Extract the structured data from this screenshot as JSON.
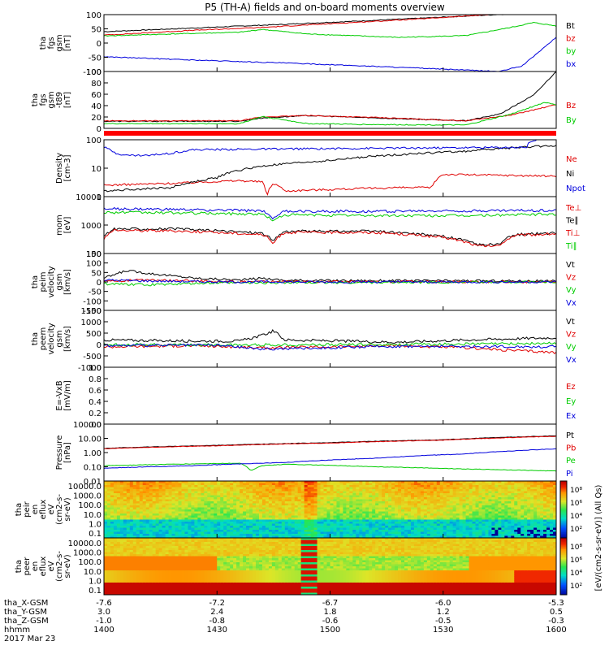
{
  "title": "P5 (TH-A) fields and on-board moments overview",
  "colors": {
    "black": "#000000",
    "red": "#e00000",
    "green": "#00cc00",
    "blue": "#0000dd"
  },
  "chart_data": [
    {
      "type": "line",
      "ylabel_lines": [
        "tha",
        "fgs",
        "gsm",
        "[nT]"
      ],
      "ylim": [
        -100,
        100
      ],
      "yticks": [
        "100",
        "50",
        "0",
        "-50",
        "-100"
      ],
      "legend": [
        {
          "text": "Bt",
          "color": "black"
        },
        {
          "text": "bz",
          "color": "red"
        },
        {
          "text": "by",
          "color": "green"
        },
        {
          "text": "bx",
          "color": "blue"
        }
      ],
      "series": [
        {
          "name": "Bt",
          "color": "black",
          "x": [
            1400,
            1440,
            1480,
            1520,
            1560,
            1600
          ],
          "y": [
            40,
            53,
            66,
            80,
            95,
            110
          ]
        },
        {
          "name": "bz",
          "color": "red",
          "x": [
            1400,
            1440,
            1470,
            1500,
            1540,
            1570,
            1580
          ],
          "y": [
            28,
            45,
            55,
            68,
            85,
            100,
            105
          ]
        },
        {
          "name": "by",
          "color": "green",
          "x": [
            1400,
            1430,
            1460,
            1470,
            1490,
            1530,
            1560,
            1580,
            1590,
            1600
          ],
          "y": [
            25,
            32,
            38,
            48,
            32,
            20,
            26,
            55,
            72,
            60
          ]
        },
        {
          "name": "bx",
          "color": "blue",
          "x": [
            1400,
            1440,
            1480,
            1520,
            1560,
            1575,
            1585,
            1600
          ],
          "y": [
            -48,
            -60,
            -70,
            -82,
            -95,
            -100,
            -80,
            20
          ]
        }
      ]
    },
    {
      "type": "line",
      "ylabel_lines": [
        "tha",
        "fgs",
        "gsm",
        "-t89",
        "[nT]"
      ],
      "ylim": [
        -10,
        110
      ],
      "yticks": [
        "100",
        "80",
        "60",
        "40",
        "20",
        "0"
      ],
      "legend": [
        {
          "text": "Bz",
          "color": "red"
        },
        {
          "text": "By",
          "color": "green"
        }
      ],
      "series": [
        {
          "name": "",
          "color": "black",
          "x": [
            1400,
            1460,
            1470,
            1490,
            1520,
            1560,
            1575,
            1590,
            1600
          ],
          "y": [
            5,
            5,
            12,
            17,
            12,
            6,
            20,
            60,
            110
          ]
        },
        {
          "name": "Bz",
          "color": "red",
          "x": [
            1400,
            1460,
            1470,
            1490,
            1520,
            1560,
            1580,
            1600
          ],
          "y": [
            6,
            6,
            14,
            17,
            13,
            6,
            18,
            40
          ]
        },
        {
          "name": "By",
          "color": "green",
          "x": [
            1400,
            1460,
            1470,
            1490,
            1520,
            1560,
            1580,
            1595,
            1600
          ],
          "y": [
            0,
            0,
            15,
            0,
            -2,
            -3,
            20,
            45,
            40
          ]
        }
      ]
    },
    {
      "type": "line",
      "ylabel_lines": [
        "Density",
        "[cm-3]"
      ],
      "yscale": "log",
      "ylim": [
        0.1,
        100
      ],
      "yticks": [
        "100",
        "10",
        "1"
      ],
      "legend": [
        {
          "text": "Ne",
          "color": "red"
        },
        {
          "text": "Ni",
          "color": "black"
        },
        {
          "text": "Npot",
          "color": "blue"
        }
      ],
      "series": [
        {
          "name": "Ne",
          "color": "red",
          "x": [
            1400,
            1430,
            1460,
            1470,
            1472,
            1475,
            1480,
            1530,
            1545,
            1550,
            1600
          ],
          "y": [
            0.4,
            0.5,
            0.7,
            0.6,
            0.1,
            0.5,
            0.2,
            0.3,
            0.3,
            1.5,
            1.2
          ]
        },
        {
          "name": "Ni",
          "color": "black",
          "x": [
            1400,
            1430,
            1440,
            1450,
            1470,
            1500,
            1560,
            1600
          ],
          "y": [
            0.2,
            0.3,
            0.6,
            1,
            4,
            8,
            25,
            50
          ]
        },
        {
          "name": "Npot",
          "color": "blue",
          "x": [
            1400,
            1405,
            1410,
            1420,
            1430,
            1440,
            1587,
            1588,
            1591,
            1592
          ],
          "y": [
            40,
            20,
            15,
            15,
            20,
            30,
            40,
            80,
            80,
            120
          ]
        }
      ]
    },
    {
      "type": "line",
      "ylabel_lines": [
        "mom",
        "[eV]"
      ],
      "yscale": "log",
      "ylim": [
        10,
        10000
      ],
      "yticks": [
        "10000",
        "1000",
        "100"
      ],
      "legend": [
        {
          "text": "Te⊥",
          "color": "red"
        },
        {
          "text": "Te∥",
          "color": "black"
        },
        {
          "text": "Ti⊥",
          "color": "red"
        },
        {
          "text": "Ti∥",
          "color": "green"
        }
      ],
      "series": [
        {
          "name": "Ti∥",
          "color": "green",
          "x": [
            1400,
            1430,
            1470,
            1475,
            1480,
            1520,
            1560,
            1600
          ],
          "y": [
            1500,
            1400,
            1200,
            500,
            1100,
            1000,
            1000,
            1200
          ]
        },
        {
          "name": "",
          "color": "blue",
          "x": [
            1400,
            1430,
            1470,
            1475,
            1480,
            1520,
            1560,
            1600
          ],
          "y": [
            2300,
            2100,
            1800,
            700,
            1700,
            1700,
            1800,
            1900
          ]
        },
        {
          "name": "Te∥",
          "color": "black",
          "x": [
            1400,
            1405,
            1430,
            1470,
            1475,
            1480,
            1520,
            1550,
            1565,
            1575,
            1582,
            1600
          ],
          "y": [
            80,
            200,
            200,
            120,
            40,
            150,
            150,
            80,
            30,
            30,
            100,
            120
          ]
        },
        {
          "name": "Ti⊥",
          "color": "red",
          "x": [
            1400,
            1405,
            1430,
            1470,
            1475,
            1480,
            1520,
            1550,
            1565,
            1575,
            1582,
            1600
          ],
          "y": [
            60,
            170,
            160,
            100,
            30,
            130,
            130,
            70,
            25,
            25,
            90,
            110
          ]
        }
      ]
    },
    {
      "type": "line",
      "ylabel_lines": [
        "tha",
        "peim",
        "velocity",
        "gsm",
        "[km/s]"
      ],
      "ylim": [
        -150,
        150
      ],
      "yticks": [
        "150",
        "100",
        "50",
        "0",
        "-50",
        "-100",
        "-150"
      ],
      "legend": [
        {
          "text": "Vt",
          "color": "black"
        },
        {
          "text": "Vz",
          "color": "red"
        },
        {
          "text": "Vy",
          "color": "green"
        },
        {
          "text": "Vx",
          "color": "blue"
        }
      ],
      "series": [
        {
          "name": "Vt",
          "color": "black",
          "x": [
            1400,
            1410,
            1420,
            1440,
            1460,
            1470,
            1480,
            1600
          ],
          "y": [
            20,
            60,
            45,
            20,
            10,
            20,
            8,
            5
          ]
        },
        {
          "name": "Vz",
          "color": "red",
          "x": [
            1400,
            1420,
            1450,
            1600
          ],
          "y": [
            5,
            10,
            2,
            0
          ]
        },
        {
          "name": "Vy",
          "color": "green",
          "x": [
            1400,
            1420,
            1450,
            1600
          ],
          "y": [
            -10,
            -15,
            -5,
            0
          ]
        },
        {
          "name": "Vx",
          "color": "blue",
          "x": [
            1400,
            1420,
            1450,
            1600
          ],
          "y": [
            10,
            5,
            0,
            0
          ]
        }
      ]
    },
    {
      "type": "line",
      "ylabel_lines": [
        "tha",
        "peem",
        "velocity",
        "gsm",
        "[km/s]"
      ],
      "ylim": [
        -1000,
        1500
      ],
      "yticks": [
        "1500",
        "1000",
        "500",
        "0",
        "-500",
        "-1000"
      ],
      "legend": [
        {
          "text": "Vt",
          "color": "black"
        },
        {
          "text": "Vz",
          "color": "red"
        },
        {
          "text": "Vy",
          "color": "green"
        },
        {
          "text": "Vx",
          "color": "blue"
        }
      ],
      "series": [
        {
          "name": "Vt",
          "color": "black",
          "x": [
            1400,
            1440,
            1460,
            1470,
            1475,
            1480,
            1530,
            1560,
            1600
          ],
          "y": [
            200,
            150,
            150,
            400,
            600,
            200,
            100,
            200,
            300
          ]
        },
        {
          "name": "Vz",
          "color": "red",
          "x": [
            1400,
            1440,
            1470,
            1530,
            1560,
            1600
          ],
          "y": [
            -100,
            -50,
            -150,
            -50,
            -150,
            -350
          ]
        },
        {
          "name": "Vy",
          "color": "green",
          "x": [
            1400,
            1450,
            1530,
            1600
          ],
          "y": [
            0,
            -20,
            0,
            50
          ]
        },
        {
          "name": "Vx",
          "color": "blue",
          "x": [
            1400,
            1450,
            1470,
            1530,
            1600
          ],
          "y": [
            -50,
            -30,
            -200,
            -80,
            -100
          ]
        }
      ]
    },
    {
      "type": "line",
      "ylabel_lines": [
        "E=-VxB",
        "[mV/m]"
      ],
      "ylim": [
        0,
        1
      ],
      "yticks": [
        "1.0",
        "0.8",
        "0.6",
        "0.4",
        "0.2",
        "0.0"
      ],
      "legend": [
        {
          "text": "Ez",
          "color": "red"
        },
        {
          "text": "Ey",
          "color": "green"
        },
        {
          "text": "Ex",
          "color": "blue"
        }
      ],
      "series": []
    },
    {
      "type": "line",
      "ylabel_lines": [
        "Pressure",
        "[nPa]"
      ],
      "yscale": "log",
      "ylim": [
        0.01,
        100
      ],
      "yticks": [
        "100.00",
        "10.00",
        "1.00",
        "0.10",
        "0.01"
      ],
      "legend": [
        {
          "text": "Pt",
          "color": "black"
        },
        {
          "text": "Pb",
          "color": "red"
        },
        {
          "text": "Pe",
          "color": "green"
        },
        {
          "text": "Pi",
          "color": "blue"
        }
      ],
      "series": [
        {
          "name": "Pt",
          "color": "black",
          "x": [
            1400,
            1450,
            1500,
            1550,
            1600
          ],
          "y": [
            2,
            3.2,
            5,
            8,
            15
          ]
        },
        {
          "name": "Pb",
          "color": "red",
          "x": [
            1400,
            1450,
            1500,
            1550,
            1600
          ],
          "y": [
            1.9,
            3,
            4.7,
            7.5,
            14
          ]
        },
        {
          "name": "Pe",
          "color": "green",
          "x": [
            1400,
            1430,
            1460,
            1465,
            1470,
            1480,
            1520,
            1560,
            1600
          ],
          "y": [
            0.12,
            0.15,
            0.18,
            0.05,
            0.12,
            0.15,
            0.1,
            0.07,
            0.05
          ]
        },
        {
          "name": "Pi",
          "color": "blue",
          "x": [
            1400,
            1440,
            1480,
            1520,
            1560,
            1600
          ],
          "y": [
            0.08,
            0.12,
            0.2,
            0.4,
            0.8,
            1.8
          ]
        }
      ]
    },
    {
      "type": "heatmap",
      "ylabel_lines": [
        "tha",
        "peir",
        "en",
        "eflux",
        "eV",
        "(cm2-s-",
        "sr-eV)"
      ],
      "yticks": [
        "10000.0",
        "1000.0",
        "100.0",
        "10.0",
        "1.0",
        "0.1"
      ]
    },
    {
      "type": "heatmap",
      "ylabel_lines": [
        "tha",
        "peer",
        "en",
        "eflux",
        "eV",
        "(cm2-s-",
        "sr-eV)"
      ],
      "yticks": [
        "10000.0",
        "1000.0",
        "100.0",
        "10.0",
        "1.0",
        "0.1"
      ]
    }
  ],
  "colorbar": {
    "label": "[eV/(cm2-s-sr-eV)] (All Qs)",
    "top_ticks": [
      "10⁸",
      "10⁶",
      "10⁴",
      "10²"
    ],
    "bottom_ticks": [
      "10⁸",
      "10⁶",
      "10⁴",
      "10²"
    ]
  },
  "xaxis": {
    "range": [
      1400,
      1600
    ],
    "rows": [
      {
        "label": "tha_X-GSM",
        "values": [
          "-7.6",
          "-7.2",
          "-6.7",
          "-6.0",
          "-5.3"
        ]
      },
      {
        "label": "tha_Y-GSM",
        "values": [
          "3.0",
          "2.4",
          "1.8",
          "1.2",
          "0.5"
        ]
      },
      {
        "label": "tha_Z-GSM",
        "values": [
          "-1.0",
          "-0.8",
          "-0.6",
          "-0.5",
          "-0.3"
        ]
      },
      {
        "label": "hhmm",
        "values": [
          "1400",
          "1430",
          "1500",
          "1530",
          "1600"
        ]
      }
    ],
    "date": "2017 Mar 23"
  }
}
